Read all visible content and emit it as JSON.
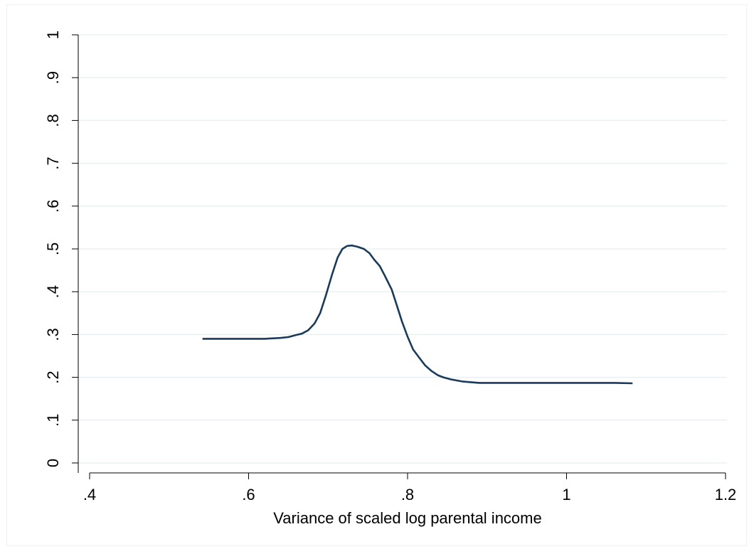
{
  "chart_data": {
    "type": "line",
    "title": "",
    "xlabel": "Variance of scaled log parental income",
    "ylabel": "",
    "xlim": [
      0.4,
      1.2
    ],
    "ylim": [
      0,
      1
    ],
    "x_ticks": [
      0.4,
      0.6,
      0.8,
      1.0,
      1.2
    ],
    "x_tick_labels": [
      ".4",
      ".6",
      ".8",
      "1",
      "1.2"
    ],
    "y_ticks": [
      0,
      0.1,
      0.2,
      0.3,
      0.4,
      0.5,
      0.6,
      0.7,
      0.8,
      0.9,
      1.0
    ],
    "y_tick_labels": [
      "0",
      ".1",
      ".2",
      ".3",
      ".4",
      ".5",
      ".6",
      ".7",
      ".8",
      ".9",
      "1"
    ],
    "grid": "horizontal",
    "colors": {
      "line": "#1a3a5c",
      "grid": "#eaf0f2",
      "axis": "#000000"
    },
    "series": [
      {
        "x": [
          0.542,
          0.56,
          0.58,
          0.6,
          0.62,
          0.63,
          0.64,
          0.65,
          0.66,
          0.667,
          0.675,
          0.683,
          0.69,
          0.697,
          0.705,
          0.712,
          0.718,
          0.724,
          0.73,
          0.737,
          0.745,
          0.752,
          0.758,
          0.765,
          0.772,
          0.78,
          0.787,
          0.793,
          0.8,
          0.807,
          0.815,
          0.822,
          0.83,
          0.838,
          0.845,
          0.855,
          0.87,
          0.89,
          0.92,
          0.96,
          1.0,
          1.03,
          1.06,
          1.083
        ],
        "y": [
          0.29,
          0.29,
          0.29,
          0.29,
          0.29,
          0.291,
          0.292,
          0.294,
          0.299,
          0.302,
          0.31,
          0.326,
          0.35,
          0.39,
          0.44,
          0.48,
          0.5,
          0.507,
          0.508,
          0.505,
          0.5,
          0.49,
          0.475,
          0.46,
          0.435,
          0.405,
          0.365,
          0.33,
          0.295,
          0.265,
          0.245,
          0.228,
          0.215,
          0.205,
          0.2,
          0.195,
          0.19,
          0.187,
          0.187,
          0.187,
          0.187,
          0.187,
          0.187,
          0.186
        ]
      }
    ]
  }
}
